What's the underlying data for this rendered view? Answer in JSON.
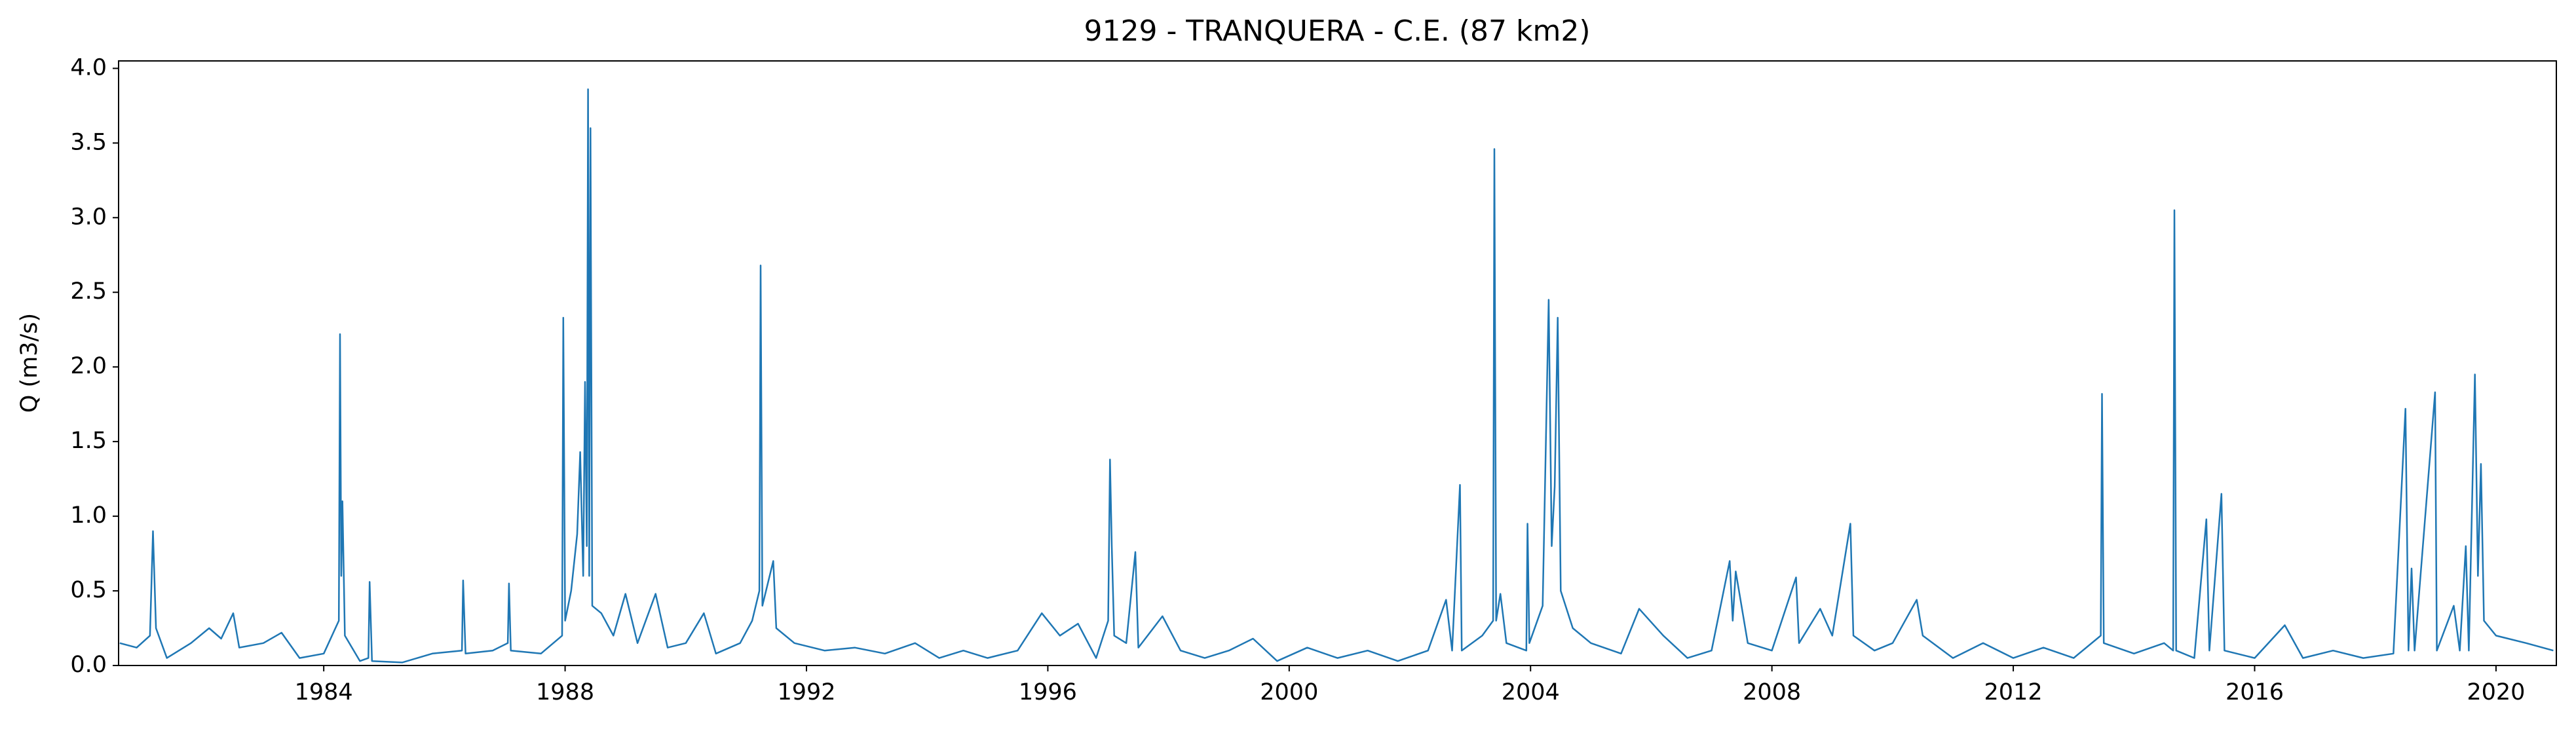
{
  "chart_data": {
    "type": "line",
    "title": "9129 - TRANQUERA - C.E. (87 km2)",
    "y_label": "Q (m3/s)",
    "x": [
      1980.62,
      1980.9,
      1981.12,
      1981.17,
      1981.22,
      1981.4,
      1981.8,
      1982.1,
      1982.3,
      1982.5,
      1982.6,
      1983.0,
      1983.3,
      1983.6,
      1984.0,
      1984.25,
      1984.27,
      1984.29,
      1984.31,
      1984.35,
      1984.6,
      1984.74,
      1984.76,
      1984.8,
      1985.3,
      1985.8,
      1986.29,
      1986.31,
      1986.35,
      1986.8,
      1987.05,
      1987.07,
      1987.1,
      1987.6,
      1987.95,
      1987.97,
      1988.0,
      1988.1,
      1988.2,
      1988.25,
      1988.3,
      1988.33,
      1988.36,
      1988.38,
      1988.4,
      1988.42,
      1988.45,
      1988.6,
      1988.8,
      1989.0,
      1989.2,
      1989.5,
      1989.7,
      1990.0,
      1990.3,
      1990.5,
      1990.9,
      1991.1,
      1991.22,
      1991.24,
      1991.27,
      1991.45,
      1991.5,
      1991.8,
      1992.3,
      1992.8,
      1993.3,
      1993.8,
      1994.2,
      1994.6,
      1995.0,
      1995.5,
      1995.9,
      1996.2,
      1996.5,
      1996.8,
      1997.0,
      1997.03,
      1997.06,
      1997.1,
      1997.3,
      1997.45,
      1997.5,
      1997.9,
      1998.2,
      1998.6,
      1999.0,
      1999.4,
      1999.8,
      2000.3,
      2000.8,
      2001.3,
      2001.8,
      2002.3,
      2002.6,
      2002.7,
      2002.83,
      2002.86,
      2003.2,
      2003.38,
      2003.4,
      2003.43,
      2003.5,
      2003.6,
      2003.93,
      2003.95,
      2003.98,
      2004.2,
      2004.3,
      2004.35,
      2004.4,
      2004.45,
      2004.5,
      2004.7,
      2005.0,
      2005.5,
      2005.8,
      2006.2,
      2006.6,
      2007.0,
      2007.3,
      2007.35,
      2007.4,
      2007.6,
      2008.0,
      2008.4,
      2008.45,
      2008.8,
      2009.0,
      2009.3,
      2009.35,
      2009.7,
      2010.0,
      2010.4,
      2010.5,
      2011.0,
      2011.5,
      2012.0,
      2012.5,
      2013.0,
      2013.45,
      2013.47,
      2013.5,
      2014.0,
      2014.5,
      2014.65,
      2014.67,
      2014.7,
      2015.0,
      2015.2,
      2015.25,
      2015.45,
      2015.5,
      2016.0,
      2016.5,
      2016.8,
      2017.3,
      2017.8,
      2018.3,
      2018.5,
      2018.55,
      2018.6,
      2018.65,
      2018.99,
      2019.02,
      2019.3,
      2019.4,
      2019.5,
      2019.55,
      2019.65,
      2019.7,
      2019.75,
      2019.8,
      2020.0,
      2020.5,
      2020.95
    ],
    "series": [
      {
        "name": "Q",
        "color": "#1f77b4",
        "values": [
          0.15,
          0.12,
          0.2,
          0.9,
          0.25,
          0.05,
          0.15,
          0.25,
          0.18,
          0.35,
          0.12,
          0.15,
          0.22,
          0.05,
          0.08,
          0.3,
          2.22,
          0.6,
          1.1,
          0.2,
          0.03,
          0.05,
          0.56,
          0.03,
          0.02,
          0.08,
          0.1,
          0.57,
          0.08,
          0.1,
          0.15,
          0.55,
          0.1,
          0.08,
          0.2,
          2.33,
          0.3,
          0.5,
          0.88,
          1.43,
          0.6,
          1.9,
          0.8,
          3.86,
          0.6,
          3.6,
          0.4,
          0.35,
          0.2,
          0.48,
          0.15,
          0.48,
          0.12,
          0.15,
          0.35,
          0.08,
          0.15,
          0.3,
          0.5,
          2.68,
          0.4,
          0.7,
          0.25,
          0.15,
          0.1,
          0.12,
          0.08,
          0.15,
          0.05,
          0.1,
          0.05,
          0.1,
          0.35,
          0.2,
          0.28,
          0.05,
          0.3,
          1.38,
          0.8,
          0.2,
          0.15,
          0.76,
          0.12,
          0.33,
          0.1,
          0.05,
          0.1,
          0.18,
          0.03,
          0.12,
          0.05,
          0.1,
          0.03,
          0.1,
          0.44,
          0.1,
          1.21,
          0.1,
          0.2,
          0.3,
          3.46,
          0.3,
          0.48,
          0.15,
          0.1,
          0.95,
          0.15,
          0.4,
          2.45,
          0.8,
          1.2,
          2.33,
          0.5,
          0.25,
          0.15,
          0.08,
          0.38,
          0.2,
          0.05,
          0.1,
          0.7,
          0.3,
          0.63,
          0.15,
          0.1,
          0.59,
          0.15,
          0.38,
          0.2,
          0.95,
          0.2,
          0.1,
          0.15,
          0.44,
          0.2,
          0.05,
          0.15,
          0.05,
          0.12,
          0.05,
          0.2,
          1.82,
          0.15,
          0.08,
          0.15,
          0.1,
          3.05,
          0.1,
          0.05,
          0.98,
          0.1,
          1.15,
          0.1,
          0.05,
          0.27,
          0.05,
          0.1,
          0.05,
          0.08,
          1.72,
          0.1,
          0.65,
          0.1,
          1.83,
          0.1,
          0.4,
          0.1,
          0.8,
          0.1,
          1.95,
          0.6,
          1.35,
          0.3,
          0.2,
          0.15,
          0.1
        ]
      }
    ],
    "xlim": [
      1980.6,
      2021.0
    ],
    "xticks": [
      1984,
      1988,
      1992,
      1996,
      2000,
      2004,
      2008,
      2012,
      2016,
      2020
    ],
    "ylim": [
      0,
      4.05
    ],
    "yticks": [
      {
        "value": 0,
        "label": "0.0"
      },
      0.5,
      {
        "value": 1,
        "label": "1.0"
      },
      1.5,
      {
        "value": 2,
        "label": "2.0"
      },
      2.5,
      {
        "value": 3,
        "label": "3.0"
      },
      3.5,
      {
        "value": 4,
        "label": "4.0"
      }
    ]
  }
}
